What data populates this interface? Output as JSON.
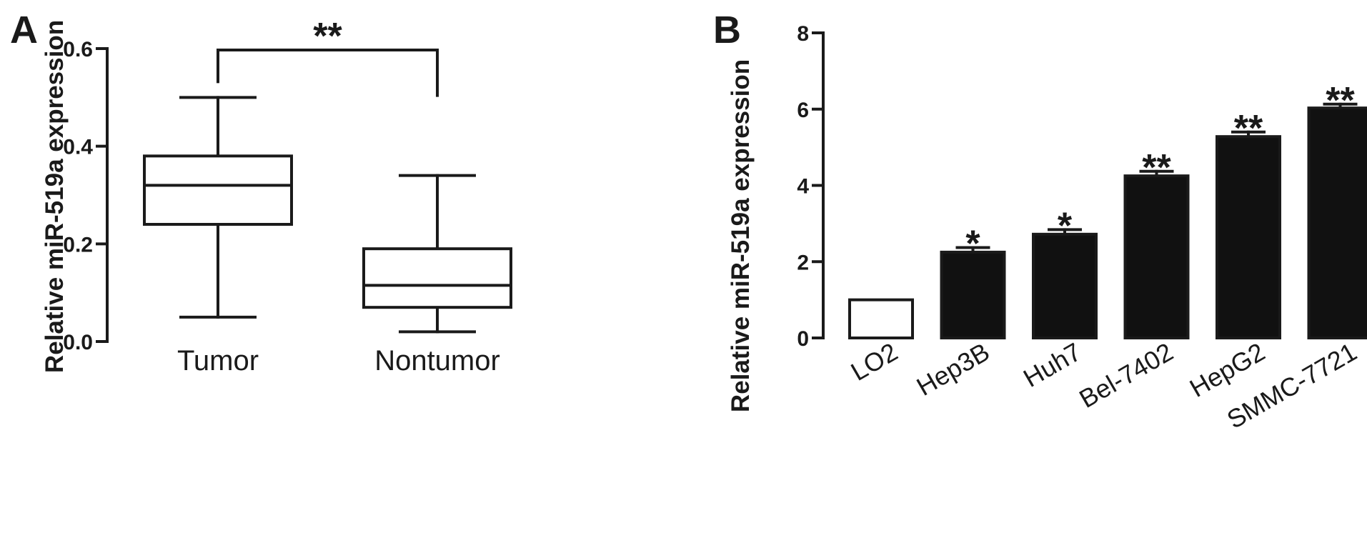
{
  "chart_data": [
    {
      "panel": "A",
      "type": "box",
      "ylabel": "Relative miR-519a expression",
      "ylim": [
        0,
        0.6
      ],
      "yticks": [
        "0.0",
        "0.2",
        "0.4",
        "0.6"
      ],
      "categories": [
        "Tumor",
        "Nontumor"
      ],
      "boxes": [
        {
          "min": 0.05,
          "q1": 0.24,
          "median": 0.32,
          "q3": 0.38,
          "max": 0.5
        },
        {
          "min": 0.02,
          "q1": 0.07,
          "median": 0.115,
          "q3": 0.19,
          "max": 0.34
        }
      ],
      "significance": {
        "label": "**",
        "between": [
          0,
          1
        ]
      }
    },
    {
      "panel": "B",
      "type": "bar",
      "ylabel": "Relative miR-519a expression",
      "ylim": [
        0,
        8
      ],
      "yticks": [
        "0",
        "2",
        "4",
        "6",
        "8"
      ],
      "categories": [
        "LO2",
        "Hep3B",
        "Huh7",
        "Bel-7402",
        "HepG2",
        "SMMC-7721"
      ],
      "values": [
        1.0,
        2.25,
        2.72,
        4.25,
        5.28,
        6.03
      ],
      "errors": [
        0,
        0.12,
        0.12,
        0.12,
        0.12,
        0.1
      ],
      "significance": [
        "",
        "*",
        "*",
        "**",
        "**",
        "**"
      ],
      "colors": [
        "#ffffff",
        "#111111",
        "#111111",
        "#111111",
        "#111111",
        "#111111"
      ]
    }
  ]
}
